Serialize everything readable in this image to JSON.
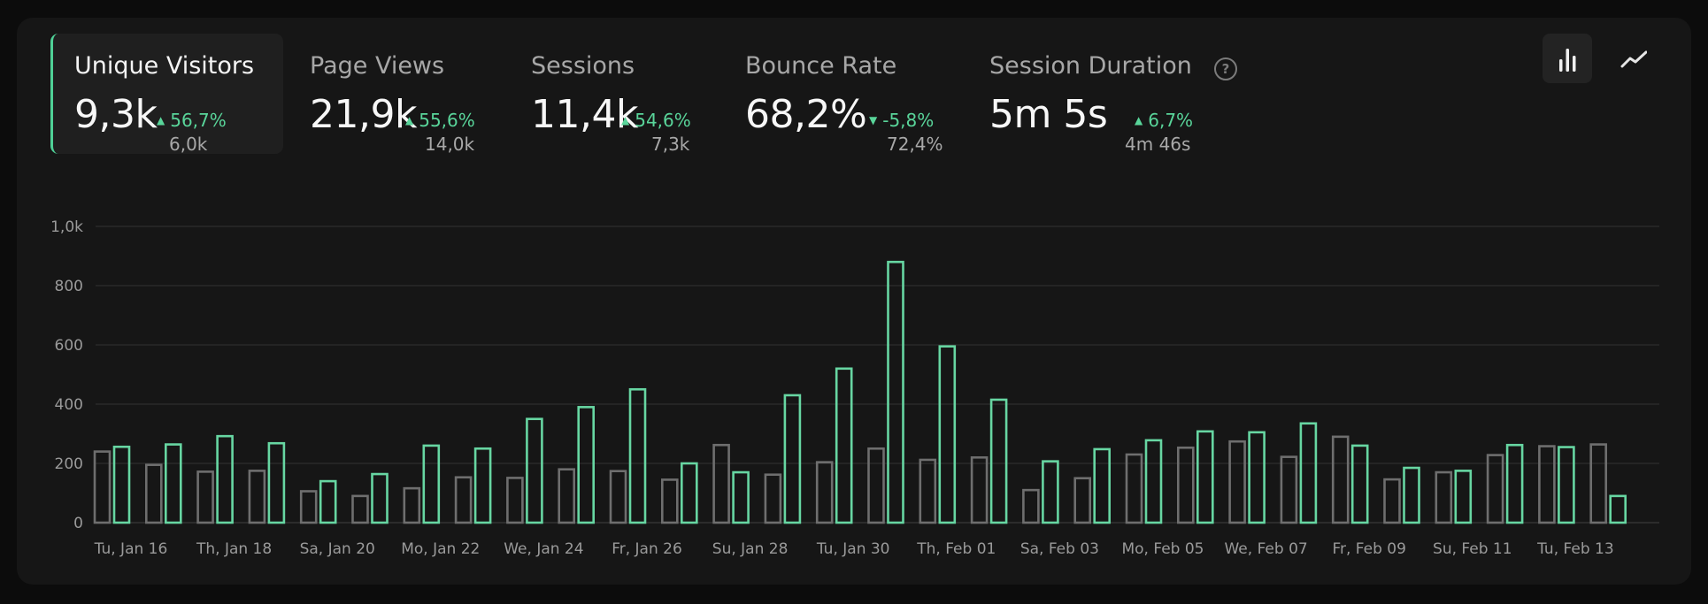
{
  "metrics": [
    {
      "label": "Unique Visitors",
      "value": "9,3k",
      "delta": "56,7%",
      "direction": "up",
      "previous": "6,0k"
    },
    {
      "label": "Page Views",
      "value": "21,9k",
      "delta": "55,6%",
      "direction": "up",
      "previous": "14,0k"
    },
    {
      "label": "Sessions",
      "value": "11,4k",
      "delta": "54,6%",
      "direction": "up",
      "previous": "7,3k"
    },
    {
      "label": "Bounce Rate",
      "value": "68,2%",
      "delta": "-5,8%",
      "direction": "down",
      "previous": "72,4%"
    },
    {
      "label": "Session Duration",
      "value": "5m 5s",
      "delta": "6,7%",
      "direction": "up",
      "previous": "4m 46s"
    }
  ],
  "icons": {
    "help": "help-circle-icon",
    "bar": "bar-chart-icon",
    "line": "line-chart-icon"
  },
  "colors": {
    "current": "#67d6a2",
    "previous": "#6e6e6e",
    "accent": "#4fd197"
  },
  "chart_data": {
    "type": "bar",
    "ylim": [
      0,
      1000
    ],
    "yticks": [
      0,
      200,
      400,
      600,
      800,
      1000
    ],
    "ytick_labels": [
      "0",
      "200",
      "400",
      "600",
      "800",
      "1,0k"
    ],
    "xtick_labels": [
      "Tu, Jan 16",
      "Th, Jan 18",
      "Sa, Jan 20",
      "Mo, Jan 22",
      "We, Jan 24",
      "Fr, Jan 26",
      "Su, Jan 28",
      "Tu, Jan 30",
      "Th, Feb 01",
      "Sa, Feb 03",
      "Mo, Feb 05",
      "We, Feb 07",
      "Fr, Feb 09",
      "Su, Feb 11",
      "Tu, Feb 13"
    ],
    "grid": true,
    "series": [
      {
        "values": [
          240,
          195,
          172,
          175,
          106,
          90,
          116,
          153,
          151,
          180,
          174,
          145,
          262,
          162,
          204,
          250,
          212,
          220,
          110,
          150,
          230,
          253,
          274,
          222,
          290,
          146,
          170,
          228,
          258,
          264
        ]
      },
      {
        "values": [
          256,
          264,
          292,
          268,
          140,
          164,
          260,
          250,
          350,
          390,
          450,
          200,
          170,
          430,
          520,
          880,
          595,
          415,
          207,
          248,
          278,
          308,
          305,
          335,
          260,
          185,
          175,
          262,
          255,
          90
        ]
      }
    ]
  }
}
